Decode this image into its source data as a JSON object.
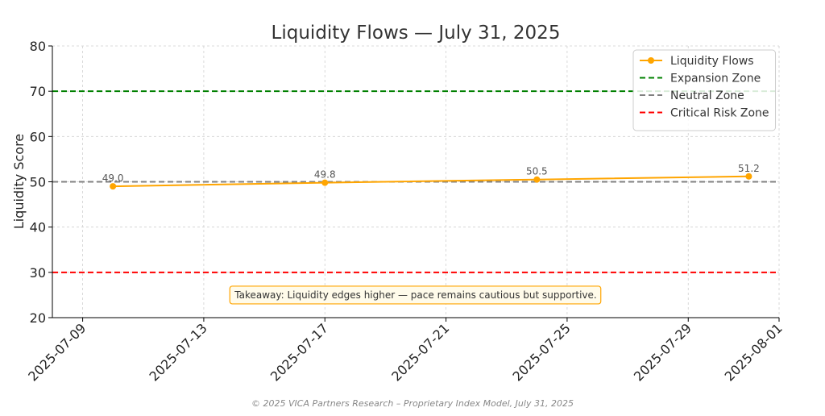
{
  "footer": "© 2025 VICA Partners Research – Proprietary Index Model, July 31, 2025",
  "chart_data": {
    "type": "line",
    "title": "Liquidity Flows — July 31, 2025",
    "xlabel": "",
    "ylabel": "Liquidity Score",
    "xlim": [
      "2025-07-08",
      "2025-08-01"
    ],
    "ylim": [
      20,
      80
    ],
    "x_ticks": [
      "2025-07-09",
      "2025-07-13",
      "2025-07-17",
      "2025-07-21",
      "2025-07-25",
      "2025-07-29",
      "2025-08-01"
    ],
    "y_ticks": [
      20,
      30,
      40,
      50,
      60,
      70,
      80
    ],
    "grid": true,
    "legend_position": "top-right",
    "series": [
      {
        "name": "Liquidity Flows",
        "color": "#FFA500",
        "marker": "circle",
        "x": [
          "2025-07-10",
          "2025-07-17",
          "2025-07-24",
          "2025-07-31"
        ],
        "values": [
          49.0,
          49.8,
          50.5,
          51.2
        ],
        "labels": [
          "49.0",
          "49.8",
          "50.5",
          "51.2"
        ]
      }
    ],
    "reference_lines": [
      {
        "name": "Expansion Zone",
        "y": 70,
        "color": "#008000",
        "style": "dashed"
      },
      {
        "name": "Neutral Zone",
        "y": 50,
        "color": "#808080",
        "style": "dashed"
      },
      {
        "name": "Critical Risk Zone",
        "y": 30,
        "color": "#FF0000",
        "style": "dashed"
      }
    ],
    "annotation": {
      "text": "Takeaway: Liquidity edges higher — pace remains cautious but supportive.",
      "x": "2025-07-20",
      "y": 25,
      "border_color": "#FFA500",
      "fill_color": "#FFFBEA"
    }
  }
}
